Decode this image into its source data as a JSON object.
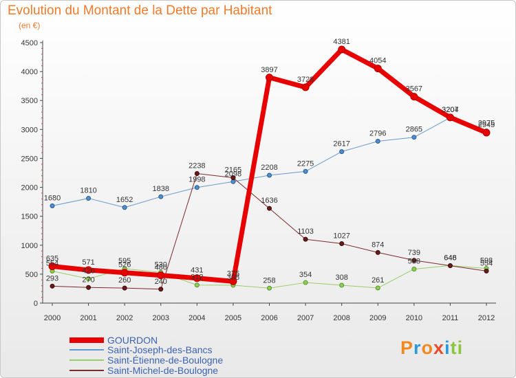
{
  "title": "Evolution du Montant de la Dette par Habitant",
  "subtitle": "(en €)",
  "brand": {
    "name": "Proxiti",
    "letters": [
      {
        "char": "P",
        "color": "#f08a20"
      },
      {
        "char": "r",
        "color": "#2a9ad8"
      },
      {
        "char": "o",
        "color": "#f08a20"
      },
      {
        "char": "x",
        "color": "#e84a2a"
      },
      {
        "char": "i",
        "color": "#2a9ad8"
      },
      {
        "char": "t",
        "color": "#8cc63e"
      },
      {
        "char": "i",
        "color": "#8cc63e"
      }
    ]
  },
  "chart_data": {
    "type": "line",
    "title": "Evolution du Montant de la Dette par Habitant",
    "subtitle": "(en €)",
    "xlabel": "",
    "ylabel": "",
    "x": [
      "2000",
      "2001",
      "2002",
      "2003",
      "2004",
      "2005",
      "2006",
      "2007",
      "2008",
      "2009",
      "2010",
      "2011",
      "2012"
    ],
    "ylim": [
      0,
      4500
    ],
    "yticks": [
      0,
      500,
      1000,
      1500,
      2000,
      2500,
      3000,
      3500,
      4000,
      4500
    ],
    "grid": false,
    "legend": "bottom-left",
    "series": [
      {
        "name": "GOURDON",
        "color": "#e80000",
        "values": [
          635,
          571,
          526,
          480,
          431,
          375,
          3897,
          3728,
          4381,
          4054,
          3567,
          3207,
          2945
        ]
      },
      {
        "name": "Saint-Joseph-des-Bancs",
        "color": "#6699cc",
        "values": [
          1680,
          1810,
          1652,
          1838,
          1998,
          2098,
          2208,
          2275,
          2617,
          2796,
          2865,
          3204,
          2975
        ]
      },
      {
        "name": "Saint-Étienne-de-Boulogne",
        "color": "#99cc66",
        "values": [
          554,
          420,
          595,
          530,
          312,
          308,
          258,
          354,
          308,
          261,
          588,
          648,
          598
        ]
      },
      {
        "name": "Saint-Michel-de-Boulogne",
        "color": "#7a2a2a",
        "values": [
          293,
          270,
          260,
          240,
          2238,
          2165,
          1636,
          1103,
          1027,
          874,
          739,
          646,
          554
        ]
      }
    ]
  }
}
